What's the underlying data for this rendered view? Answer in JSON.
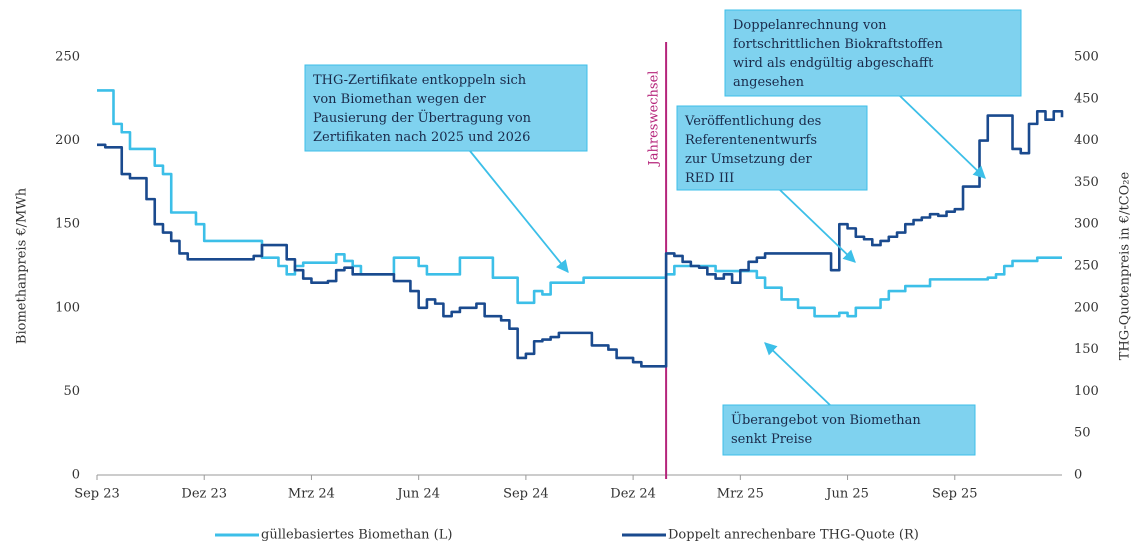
{
  "chart_data": {
    "type": "line",
    "ylabel": "Biomethanpreis €/MWh",
    "y2label": "THG-Quotenpreis in €/tCO₂e",
    "categories": [
      "Sep 23",
      null,
      null,
      null,
      null,
      null,
      null,
      null,
      null,
      null,
      null,
      null,
      null,
      "Dez 23",
      null,
      null,
      null,
      null,
      null,
      null,
      null,
      null,
      null,
      null,
      null,
      null,
      "Mrz 24",
      null,
      null,
      null,
      null,
      null,
      null,
      null,
      null,
      null,
      null,
      null,
      null,
      "Jun 24",
      null,
      null,
      null,
      null,
      null,
      null,
      null,
      null,
      null,
      null,
      null,
      null,
      "Sep 24",
      null,
      null,
      null,
      null,
      null,
      null,
      null,
      null,
      null,
      null,
      null,
      null,
      "Dez 24",
      null,
      null,
      null,
      null,
      null,
      null,
      null,
      null,
      null,
      null,
      null,
      null,
      "Mrz 25",
      null,
      null,
      null,
      null,
      null,
      null,
      null,
      null,
      null,
      null,
      null,
      null,
      "Jun 25",
      null,
      null,
      null,
      null,
      null,
      null,
      null,
      null,
      null,
      null,
      null,
      null,
      "Sep 25",
      null,
      null,
      null,
      null,
      null,
      null,
      null,
      null,
      null,
      null,
      null,
      null,
      null
    ],
    "series": [
      {
        "name": "güllebasiertes Biomethan (L)",
        "color": "#3cbfe8",
        "axis": "y",
        "values": [
          230,
          230,
          210,
          205,
          195,
          195,
          195,
          185,
          180,
          157,
          157,
          157,
          150,
          140,
          140,
          140,
          140,
          140,
          140,
          140,
          130,
          130,
          125,
          120,
          125,
          127,
          127,
          127,
          127,
          132,
          128,
          125,
          120,
          120,
          120,
          120,
          130,
          130,
          130,
          125,
          120,
          120,
          120,
          120,
          130,
          130,
          130,
          130,
          118,
          118,
          118,
          103,
          103,
          110,
          108,
          115,
          115,
          115,
          115,
          118,
          118,
          118,
          118,
          118,
          118,
          118,
          118,
          118,
          118,
          120,
          125,
          125,
          125,
          125,
          125,
          122,
          122,
          122,
          122,
          122,
          118,
          112,
          112,
          105,
          105,
          100,
          100,
          95,
          95,
          95,
          97,
          95,
          100,
          100,
          100,
          105,
          110,
          110,
          113,
          113,
          113,
          117,
          117,
          117,
          117,
          117,
          117,
          117,
          118,
          120,
          125,
          128,
          128,
          128,
          130,
          130,
          130,
          130
        ]
      },
      {
        "name": "Doppelt anrechenbare THG-Quote (R)",
        "color": "#1a4a8e",
        "axis": "y2",
        "values": [
          395,
          392,
          392,
          360,
          355,
          355,
          330,
          300,
          290,
          280,
          265,
          258,
          258,
          258,
          258,
          258,
          258,
          258,
          258,
          262,
          275,
          275,
          275,
          258,
          245,
          235,
          230,
          230,
          232,
          245,
          248,
          240,
          240,
          240,
          240,
          240,
          232,
          232,
          220,
          200,
          210,
          205,
          190,
          195,
          200,
          200,
          205,
          190,
          190,
          185,
          175,
          140,
          145,
          160,
          162,
          165,
          170,
          170,
          170,
          170,
          155,
          155,
          150,
          140,
          140,
          135,
          130,
          130,
          130,
          265,
          262,
          255,
          250,
          248,
          240,
          235,
          240,
          230,
          245,
          255,
          260,
          265,
          265,
          265,
          265,
          265,
          265,
          265,
          265,
          245,
          300,
          295,
          285,
          282,
          275,
          280,
          285,
          290,
          300,
          305,
          308,
          312,
          310,
          315,
          318,
          345,
          345,
          400,
          430,
          430,
          430,
          390,
          385,
          420,
          435,
          425,
          435,
          428
        ]
      }
    ],
    "ylim": [
      0,
      250
    ],
    "yticks": [
      0,
      50,
      100,
      150,
      200,
      250
    ],
    "y2lim": [
      0,
      500
    ],
    "y2ticks": [
      0,
      50,
      100,
      150,
      200,
      250,
      300,
      350,
      400,
      450,
      500
    ],
    "event_line": {
      "x": 69,
      "label": "Jahreswechsel",
      "color": "#b5247a"
    },
    "annotations": [
      {
        "lines": [
          "THG-Zertifikate entkoppeln sich",
          "von Biomethan wegen der",
          "Pausierung der Übertragung von",
          "Zertifikaten nach 2025 und 2026"
        ]
      },
      {
        "lines": [
          "Veröffentlichung des",
          "Referentenentwurfs",
          "zur Umsetzung der",
          "RED III"
        ]
      },
      {
        "lines": [
          "Doppelanrechnung von",
          "fortschrittlichen Biokraftstoffen",
          "wird als endgültig abgeschafft",
          "angesehen"
        ]
      },
      {
        "lines": [
          "Überangebot von Biomethan",
          "senkt Preise"
        ]
      }
    ]
  }
}
